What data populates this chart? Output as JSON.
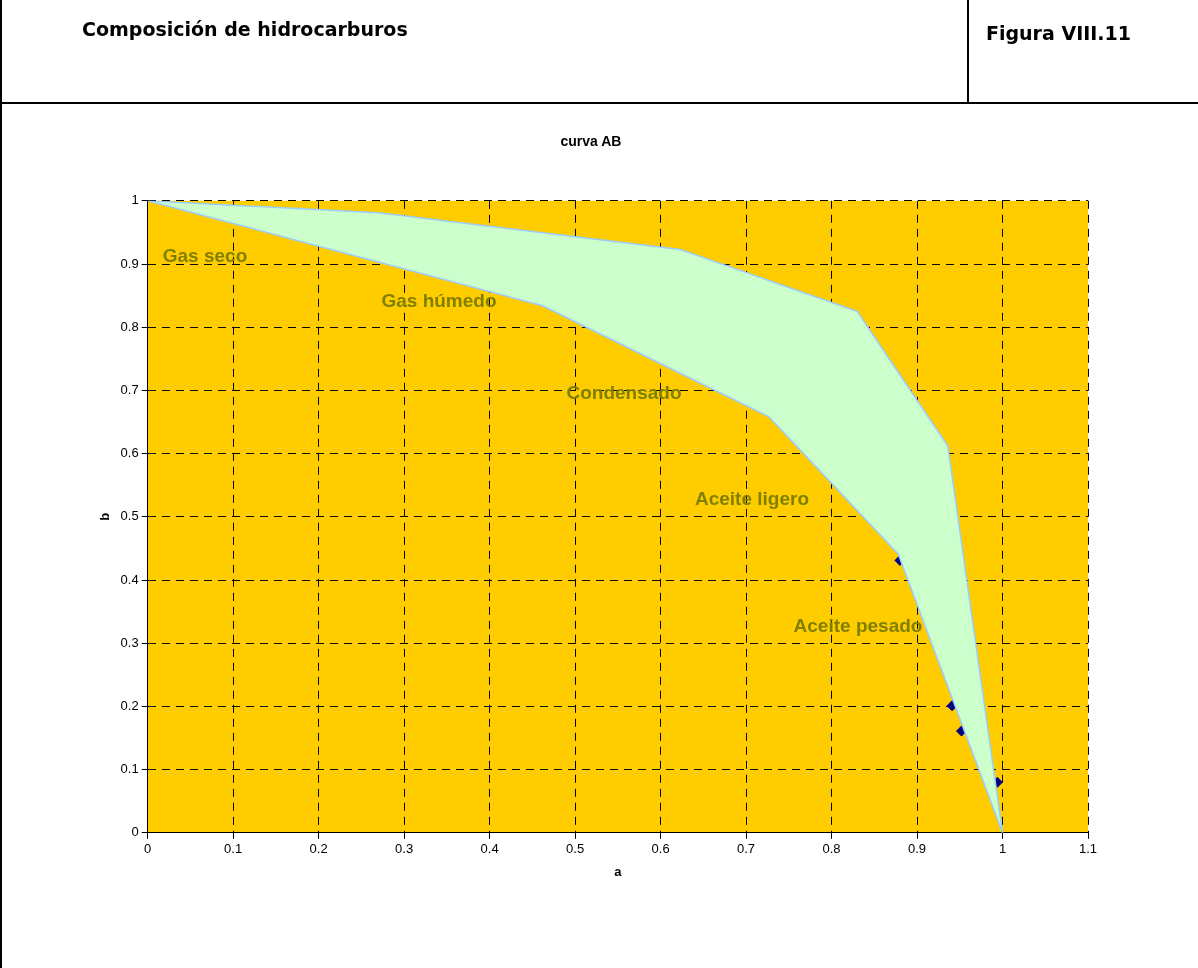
{
  "chart_data": {
    "type": "area",
    "title": "curva AB",
    "xlabel": "a",
    "ylabel": "b",
    "annotations": [
      "Composición de hidrocarburos",
      "Figura VIII.11",
      "Gas seco",
      "Gas húmedo",
      "Condensado",
      "Aceite ligero",
      "Aceite pesado"
    ],
    "series": [
      {
        "color": "#ccffcc",
        "x": [
          0,
          0.27,
          0.623,
          0.83,
          0.936,
          1,
          0.878,
          0.727,
          0.462,
          0
        ],
        "values": [
          1,
          0.981,
          0.923,
          0.825,
          0.612,
          0,
          0.441,
          0.658,
          0.834,
          1
        ]
      },
      {
        "type": "scatter",
        "color": "#000080",
        "marker": "diamond",
        "x": [
          0.88,
          0.941,
          0.952,
          0.994
        ],
        "values": [
          0.431,
          0.201,
          0.161,
          0.08
        ]
      }
    ],
    "xlim": [
      0,
      1.1
    ],
    "xticks": [
      0,
      0.1,
      0.2,
      0.3,
      0.4,
      0.5,
      0.6,
      0.7,
      0.8,
      0.9,
      1,
      1.1
    ],
    "ylim": [
      0,
      1
    ],
    "yticks": [
      0,
      0.1,
      0.2,
      0.3,
      0.4,
      0.5,
      0.6,
      0.7,
      0.8,
      0.9,
      1
    ],
    "grid": true
  }
}
